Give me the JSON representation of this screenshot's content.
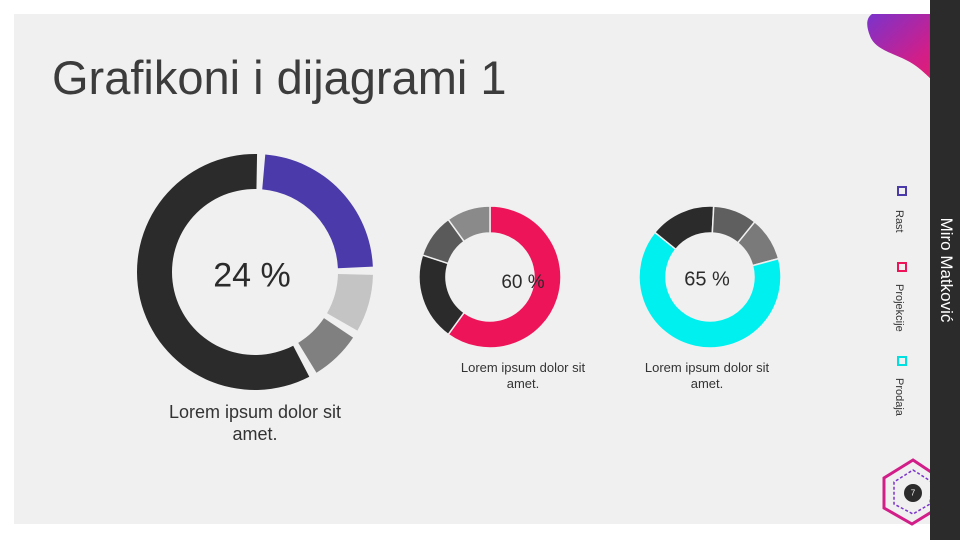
{
  "slide": {
    "title": "Grafikoni i dijagrami 1",
    "author": "Miro Matković",
    "slide_number": "7"
  },
  "charts": [
    {
      "label": "24 %",
      "caption": "Lorem ipsum dolor sit amet.",
      "segments": [
        {
          "value": 24,
          "color": "#4b3aaa"
        },
        {
          "value": 9,
          "color": "#c4c4c4"
        },
        {
          "value": 8,
          "color": "#808080"
        },
        {
          "value": 59,
          "color": "#2b2b2b"
        }
      ]
    },
    {
      "label": "60 %",
      "caption": "Lorem ipsum dolor sit amet.",
      "segments": [
        {
          "value": 60,
          "color": "#ee145a"
        },
        {
          "value": 20,
          "color": "#2b2b2b"
        },
        {
          "value": 10,
          "color": "#5a5a5a"
        },
        {
          "value": 10,
          "color": "#8a8a8a"
        }
      ]
    },
    {
      "label": "65 %",
      "caption": "Lorem ipsum dolor sit amet.",
      "segments": [
        {
          "value": 10,
          "color": "#7a7a7a"
        },
        {
          "value": 65,
          "color": "#00f0f0"
        },
        {
          "value": 15,
          "color": "#2b2b2b"
        },
        {
          "value": 10,
          "color": "#5f5f5f"
        }
      ]
    }
  ],
  "legend": [
    {
      "label": "Rast",
      "color": "#4b3aaa"
    },
    {
      "label": "Projekcije",
      "color": "#ee145a"
    },
    {
      "label": "Prodaja",
      "color": "#00e0e0"
    }
  ]
}
